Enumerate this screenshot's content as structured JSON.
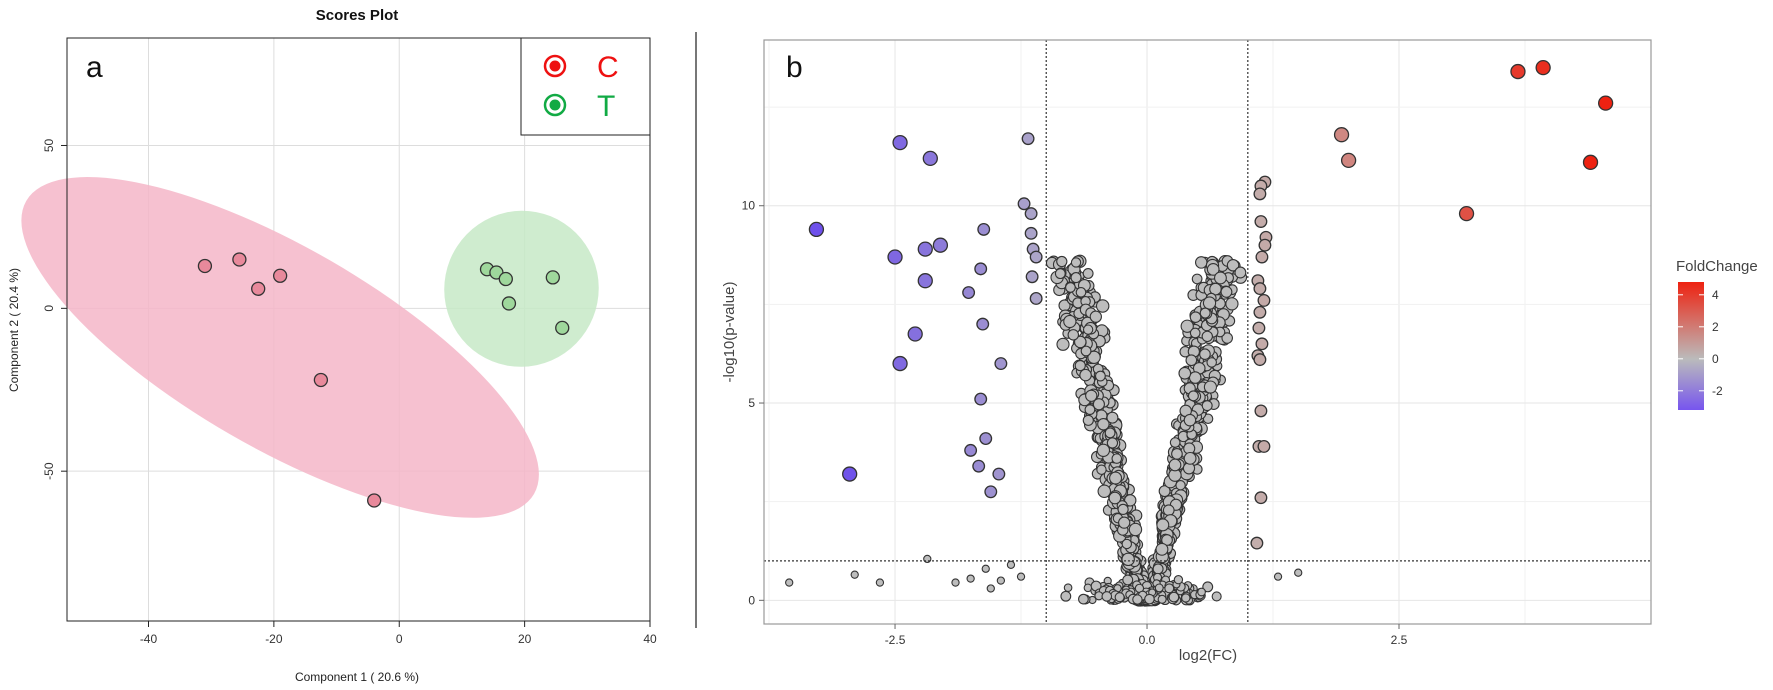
{
  "chart_data": [
    {
      "panel": "a",
      "type": "scatter",
      "title": "Scores Plot",
      "xlabel": "Component 1 ( 20.6 %)",
      "ylabel": "Component 2 ( 20.4 %)",
      "xlim": [
        -53,
        40
      ],
      "ylim": [
        -96,
        83
      ],
      "xticks": [
        -40,
        -20,
        0,
        20,
        40
      ],
      "yticks": [
        -50,
        0,
        50
      ],
      "grid": true,
      "legend": {
        "placement": "top-right",
        "entries": [
          {
            "label": "C",
            "color": "#ee1111"
          },
          {
            "label": "T",
            "color": "#11aa44"
          }
        ]
      },
      "series": [
        {
          "name": "C",
          "fill": "#e8899b",
          "ellipse": {
            "cx": -19,
            "cy": -12,
            "rx": 16,
            "ry": 90,
            "angle_deg": 60,
            "color": "#f4b6c8"
          },
          "points": [
            [
              -31,
              13
            ],
            [
              -25.5,
              15
            ],
            [
              -22.5,
              6
            ],
            [
              -19,
              10
            ],
            [
              -12.5,
              -22
            ],
            [
              -4,
              -59
            ]
          ]
        },
        {
          "name": "T",
          "fill": "#9fd89c",
          "ellipse": {
            "cx": 19.5,
            "cy": 6,
            "rx": 12.3,
            "ry": 24,
            "angle_deg": -22,
            "color": "#c7e9c7"
          },
          "points": [
            [
              14,
              12
            ],
            [
              15.5,
              11
            ],
            [
              17,
              9
            ],
            [
              17.5,
              1.5
            ],
            [
              24.5,
              9.5
            ],
            [
              26,
              -6
            ]
          ]
        }
      ]
    },
    {
      "panel": "b",
      "type": "scatter",
      "title": "",
      "xlabel": "log2(FC)",
      "ylabel": "-log10(p-value)",
      "xlim": [
        -3.8,
        5.0
      ],
      "ylim": [
        -0.6,
        14.2
      ],
      "xticks": [
        "-2.5",
        "0.0",
        "2.5"
      ],
      "yticks": [
        "0",
        "5",
        "10"
      ],
      "thresholds": {
        "fc": [
          -1,
          1
        ],
        "p": 1.0
      },
      "colorbar": {
        "title": "FoldChange",
        "ticks": [
          "4",
          "2",
          "0",
          "-2"
        ],
        "low": "#7755ee",
        "mid": "#bbbbbb",
        "high": "#ee2211"
      },
      "highlight_points": [
        [
          4.55,
          12.6
        ],
        [
          3.93,
          13.5
        ],
        [
          3.68,
          13.4
        ],
        [
          4.4,
          11.1
        ],
        [
          3.17,
          9.8
        ],
        [
          1.93,
          11.8
        ],
        [
          2.0,
          11.15
        ],
        [
          1.17,
          10.6
        ],
        [
          1.13,
          10.5
        ],
        [
          1.12,
          10.3
        ],
        [
          1.13,
          9.6
        ],
        [
          1.18,
          9.2
        ],
        [
          1.17,
          9.0
        ],
        [
          1.14,
          8.7
        ],
        [
          1.1,
          8.1
        ],
        [
          1.12,
          7.9
        ],
        [
          1.16,
          7.6
        ],
        [
          1.12,
          7.3
        ],
        [
          1.11,
          6.9
        ],
        [
          1.14,
          6.5
        ],
        [
          1.1,
          6.2
        ],
        [
          1.12,
          6.1
        ],
        [
          1.13,
          4.8
        ],
        [
          1.11,
          3.9
        ],
        [
          1.16,
          3.9
        ],
        [
          1.13,
          2.6
        ],
        [
          1.09,
          1.45
        ],
        [
          -3.28,
          9.4
        ],
        [
          -2.45,
          11.6
        ],
        [
          -2.15,
          11.2
        ],
        [
          -2.5,
          8.7
        ],
        [
          -2.2,
          8.9
        ],
        [
          -2.05,
          9.0
        ],
        [
          -2.2,
          8.1
        ],
        [
          -2.3,
          6.75
        ],
        [
          -2.45,
          6.0
        ],
        [
          -2.95,
          3.2
        ],
        [
          -1.62,
          9.4
        ],
        [
          -1.65,
          8.4
        ],
        [
          -1.77,
          7.8
        ],
        [
          -1.63,
          7.0
        ],
        [
          -1.45,
          6.0
        ],
        [
          -1.65,
          5.1
        ],
        [
          -1.6,
          4.1
        ],
        [
          -1.67,
          3.4
        ],
        [
          -1.75,
          3.8
        ],
        [
          -1.55,
          2.75
        ],
        [
          -1.47,
          3.2
        ],
        [
          -1.18,
          11.7
        ],
        [
          -1.22,
          10.05
        ],
        [
          -1.15,
          9.8
        ],
        [
          -1.15,
          9.3
        ],
        [
          -1.13,
          8.9
        ],
        [
          -1.1,
          8.7
        ],
        [
          -1.14,
          8.2
        ],
        [
          -1.1,
          7.65
        ]
      ]
    }
  ],
  "annotations": {
    "panel_a_letter": "a",
    "panel_b_letter": "b"
  }
}
